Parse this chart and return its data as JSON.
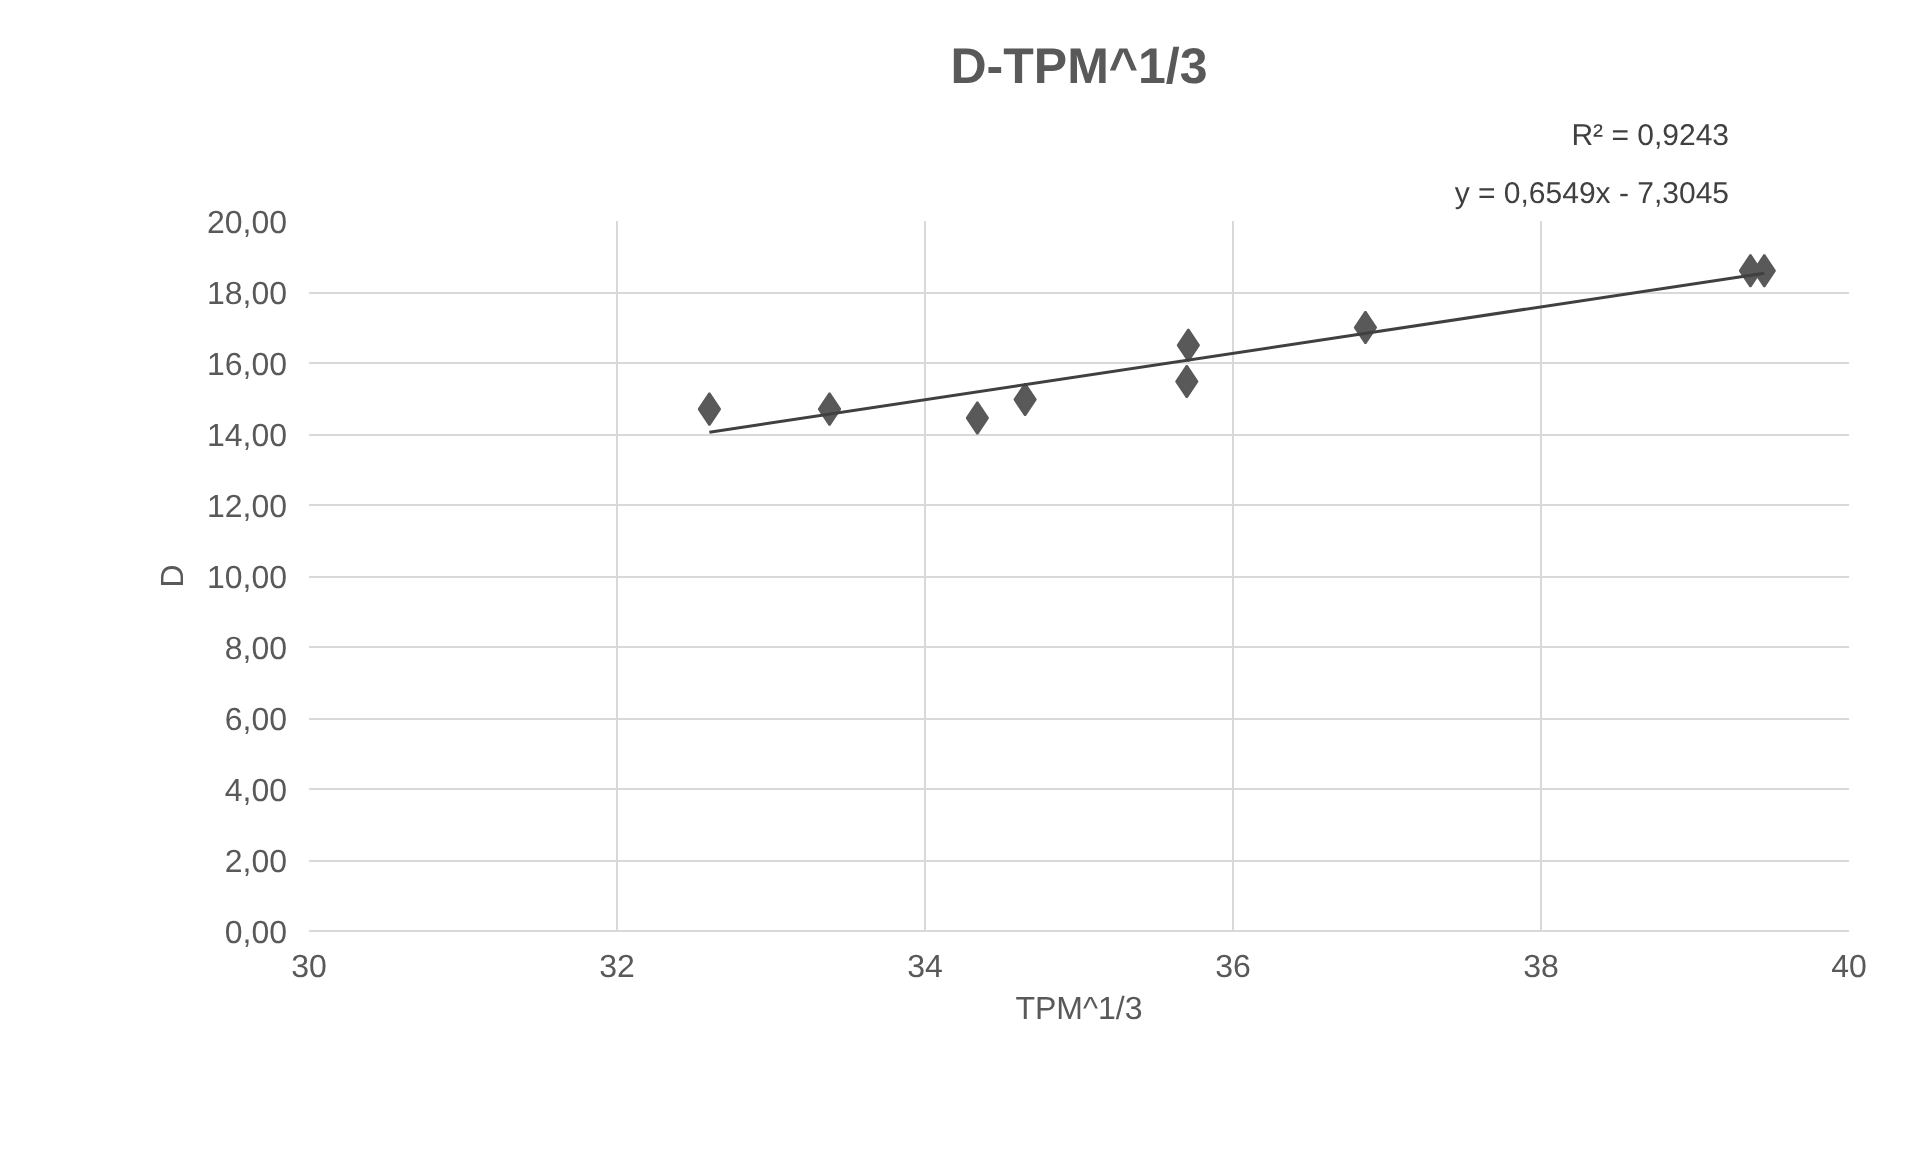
{
  "chart_data": {
    "type": "scatter",
    "title": "D-TPM^1/3",
    "xlabel": "TPM^1/3",
    "ylabel": "D",
    "annotations": [
      "y = 0,6549x - 7,3045",
      "R² = 0,9243"
    ],
    "series": [
      {
        "color": "#595959",
        "marker": "diamond",
        "x": [
          32.6,
          33.38,
          34.34,
          34.65,
          35.7,
          35.71,
          36.86,
          39.36,
          39.45
        ],
        "values": [
          14.7,
          14.7,
          14.45,
          14.97,
          15.48,
          16.5,
          17.0,
          18.6,
          18.6
        ]
      },
      {
        "type": "line",
        "color": "#404040",
        "marker": "none",
        "line_style": "solid",
        "x": [
          32.6,
          39.45
        ],
        "values": [
          14.05,
          18.53
        ]
      }
    ],
    "xlim": [
      30,
      40
    ],
    "xticks": [
      30,
      32,
      34,
      36,
      38,
      40
    ],
    "ylim": [
      0,
      20
    ],
    "yticks": [
      {
        "value": 0,
        "label": "0,00"
      },
      {
        "value": 2,
        "label": "2,00"
      },
      {
        "value": 4,
        "label": "4,00"
      },
      {
        "value": 6,
        "label": "6,00"
      },
      {
        "value": 8,
        "label": "8,00"
      },
      {
        "value": 10,
        "label": "10,00"
      },
      {
        "value": 12,
        "label": "12,00"
      },
      {
        "value": 14,
        "label": "14,00"
      },
      {
        "value": 16,
        "label": "16,00"
      },
      {
        "value": 18,
        "label": "18,00"
      },
      {
        "value": 20,
        "label": "20,00"
      }
    ],
    "grid": true
  }
}
